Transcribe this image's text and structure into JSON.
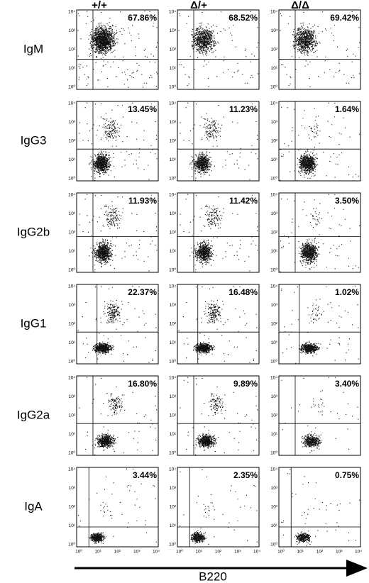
{
  "columns": [
    "+/+",
    "Δ/+",
    "Δ/Δ"
  ],
  "rows": [
    {
      "label": "IgM",
      "percents": [
        "67.86%",
        "68.52%",
        "69.42%"
      ]
    },
    {
      "label": "IgG3",
      "percents": [
        "13.45%",
        "11.23%",
        "1.64%"
      ]
    },
    {
      "label": "IgG2b",
      "percents": [
        "11.93%",
        "11.42%",
        "3.50%"
      ]
    },
    {
      "label": "IgG1",
      "percents": [
        "22.37%",
        "16.48%",
        "1.02%"
      ]
    },
    {
      "label": "IgG2a",
      "percents": [
        "16.80%",
        "9.89%",
        "3.40%"
      ]
    },
    {
      "label": "IgA",
      "percents": [
        "3.44%",
        "2.35%",
        "0.75%"
      ]
    }
  ],
  "axis_ticks": [
    "10⁰",
    "10¹",
    "10²",
    "10³",
    "10⁴"
  ],
  "x_axis_label": "B220"
}
